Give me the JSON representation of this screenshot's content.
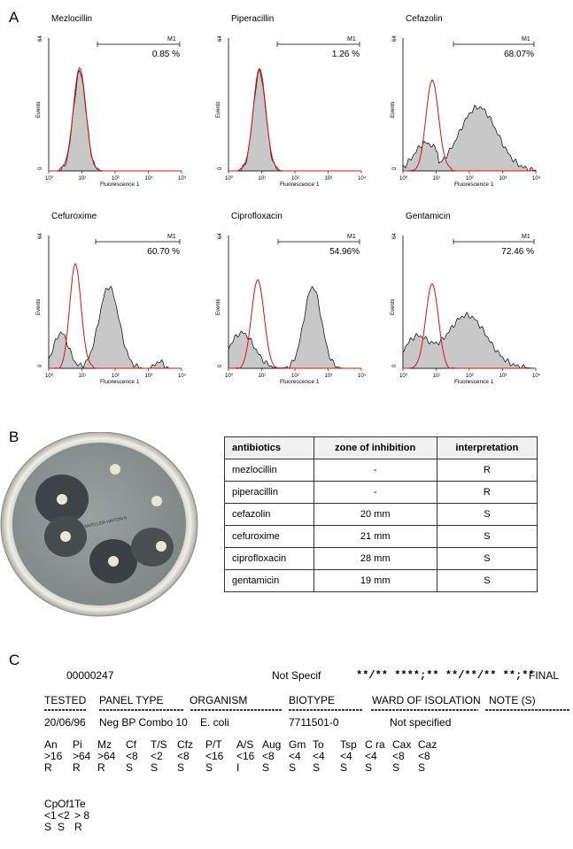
{
  "panels": {
    "a": "A",
    "b": "B",
    "c": "C"
  },
  "histogram_axis": {
    "ylabel": "Events",
    "xlabel": "Fluorescence 1",
    "y_ticks": [
      "64",
      "0"
    ],
    "x_ticks": [
      "10⁰",
      "10¹",
      "10²",
      "10³",
      "10⁴"
    ],
    "gate_label": "M1"
  },
  "chart_data": [
    {
      "type": "area",
      "title": "Mezlocillin",
      "gate_percent": "0.85 %",
      "ylim": [
        0,
        64
      ],
      "x_scale": "log",
      "xlim": [
        1,
        10000
      ]
    },
    {
      "type": "area",
      "title": "Piperacillin",
      "gate_percent": "1.26 %",
      "ylim": [
        0,
        64
      ],
      "x_scale": "log",
      "xlim": [
        1,
        10000
      ]
    },
    {
      "type": "area",
      "title": "Cefazolin",
      "gate_percent": "68.07%",
      "ylim": [
        0,
        64
      ],
      "x_scale": "log",
      "xlim": [
        1,
        10000
      ]
    },
    {
      "type": "area",
      "title": "Cefuroxime",
      "gate_percent": "60.70 %",
      "ylim": [
        0,
        64
      ],
      "x_scale": "log",
      "xlim": [
        1,
        10000
      ]
    },
    {
      "type": "area",
      "title": "Ciprofloxacin",
      "gate_percent": "54.96%",
      "ylim": [
        0,
        64
      ],
      "x_scale": "log",
      "xlim": [
        1,
        10000
      ]
    },
    {
      "type": "area",
      "title": "Gentamicin",
      "gate_percent": "72.46 %",
      "ylim": [
        0,
        64
      ],
      "x_scale": "log",
      "xlim": [
        1,
        10000
      ]
    }
  ],
  "plate_text": "MUELLER HINTON II",
  "table": {
    "headers": [
      "antibiotics",
      "zone of inhibition",
      "interpretation"
    ],
    "rows": [
      [
        "mezlocillin",
        "-",
        "R"
      ],
      [
        "piperacillin",
        "-",
        "R"
      ],
      [
        "cefazolin",
        "20 mm",
        "S"
      ],
      [
        "cefuroxime",
        "21 mm",
        "S"
      ],
      [
        "ciprofloxacin",
        "28 mm",
        "S"
      ],
      [
        "gentamicin",
        "19 mm",
        "S"
      ]
    ]
  },
  "report": {
    "id": "00000247",
    "not_specif": "Not Specif",
    "masked": "**/** ****;** **/**/** **;**",
    "final": "FINAL",
    "headers": [
      "TESTED",
      "PANEL TYPE",
      "ORGANISM",
      "BIOTYPE",
      "WARD OF ISOLATION",
      "NOTE (S)"
    ],
    "values": [
      "20/06/96",
      "Neg BP Combo 10",
      "E. coli",
      "7711501-0",
      "Not specified"
    ],
    "mic_row1": [
      [
        "An",
        ">16",
        "R"
      ],
      [
        "Pi",
        ">64",
        "R"
      ],
      [
        "Mz",
        ">64",
        "R"
      ],
      [
        "Cf",
        "<8",
        "S"
      ],
      [
        "T/S",
        "<2",
        "S"
      ],
      [
        "Cfz",
        "<8",
        "S"
      ],
      [
        "P/T",
        "<16",
        "S"
      ],
      [
        "A/S",
        "<16",
        "I"
      ],
      [
        "Aug",
        "<8",
        "S"
      ],
      [
        "Gm",
        "<4",
        "S"
      ],
      [
        "To",
        "<4",
        "S"
      ],
      [
        "Tsp",
        "<4",
        "S"
      ],
      [
        "C ra",
        "<4",
        "S"
      ],
      [
        "Cax",
        "<8",
        "S"
      ],
      [
        "Caz",
        "<8",
        "S"
      ]
    ],
    "mic_row2": [
      [
        "Cp",
        "<1",
        "S"
      ],
      [
        "Of1",
        "<2",
        "S"
      ],
      [
        "Te",
        "> 8",
        "R"
      ]
    ]
  }
}
